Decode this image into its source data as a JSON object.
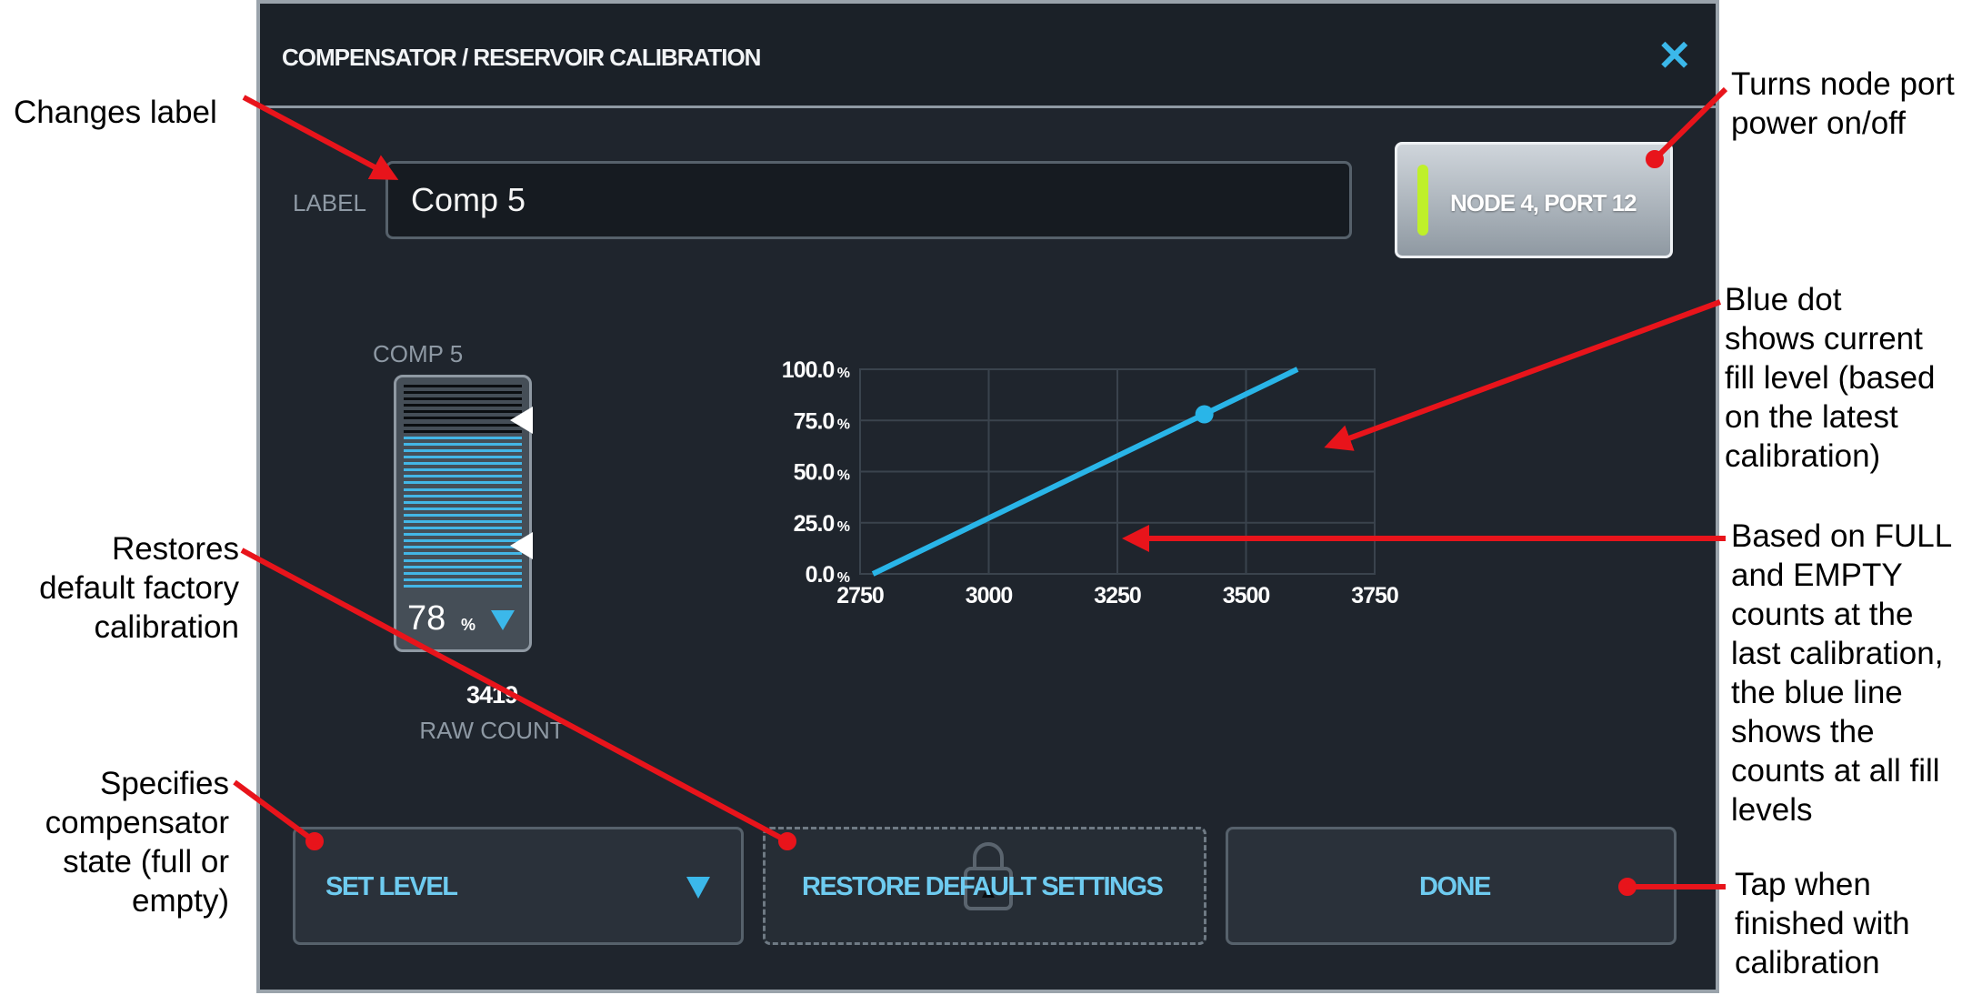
{
  "dialog": {
    "title": "COMPENSATOR / RESERVOIR CALIBRATION",
    "close_symbol": "✕",
    "label_caption": "LABEL",
    "label_value": "Comp 5",
    "node_button": {
      "text": "NODE 4, PORT 12",
      "led_color": "#bff02a"
    },
    "gauge": {
      "caption": "COMP 5",
      "level_percent": 78,
      "percent_text": "78",
      "percent_sign": "%",
      "raw_count": "3419",
      "raw_caption": "RAW COUNT",
      "markers": [
        "full-marker",
        "empty-marker"
      ]
    },
    "buttons": {
      "set_level": "SET LEVEL",
      "restore": "RESTORE DEFAULT SETTINGS",
      "done": "DONE"
    },
    "colors": {
      "accent": "#3bb8ea",
      "background": "#1f252d",
      "led": "#bff02a"
    }
  },
  "chart_data": {
    "type": "line",
    "x_ticks": [
      "2750",
      "3000",
      "3250",
      "3500",
      "3750"
    ],
    "y_ticks": [
      "0.0",
      "25.0",
      "50.0",
      "75.0",
      "100.0"
    ],
    "y_unit": "%",
    "xlim": [
      2750,
      3750
    ],
    "ylim": [
      0,
      100
    ],
    "grid": true,
    "series": [
      {
        "x": [
          2775,
          3600
        ],
        "y": [
          0,
          100
        ],
        "color": "#29b5e8"
      }
    ],
    "current_point": {
      "x": 3419,
      "y": 78
    }
  },
  "annotations": [
    {
      "text": "Changes label"
    },
    {
      "text": "Turns node port\npower on/off"
    },
    {
      "text": "Blue dot\nshows current\nfill level (based\non the latest\ncalibration)"
    },
    {
      "text": "Restores\ndefault factory\ncalibration"
    },
    {
      "text": "Based on FULL\nand EMPTY\ncounts at the\nlast calibration,\nthe blue line\nshows the\ncounts at all fill\nlevels"
    },
    {
      "text": "Specifies\ncompensator\nstate (full or\nempty)"
    },
    {
      "text": "Tap when\nfinished with\ncalibration"
    }
  ]
}
